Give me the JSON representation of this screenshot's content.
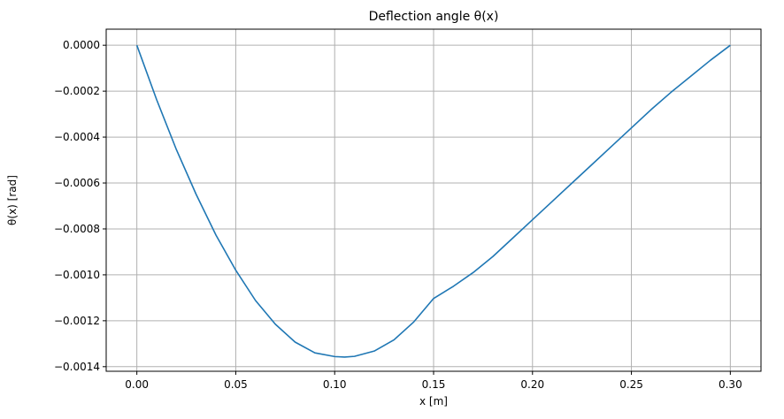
{
  "chart_data": {
    "type": "line",
    "title": "Deflection angle θ(x)",
    "xlabel": "x [m]",
    "ylabel": "θ(x) [rad]",
    "xlim": [
      -0.0155,
      0.3155
    ],
    "ylim": [
      -0.00142,
      7e-05
    ],
    "x_ticks": [
      0.0,
      0.05,
      0.1,
      0.15,
      0.2,
      0.25,
      0.3
    ],
    "x_tick_labels": [
      "0.00",
      "0.05",
      "0.10",
      "0.15",
      "0.20",
      "0.25",
      "0.30"
    ],
    "y_ticks": [
      0.0,
      -0.0002,
      -0.0004,
      -0.0006,
      -0.0008,
      -0.001,
      -0.0012,
      -0.0014
    ],
    "y_tick_labels": [
      "0.0000",
      "−0.0002",
      "−0.0004",
      "−0.0006",
      "−0.0008",
      "−0.0010",
      "−0.0012",
      "−0.0014"
    ],
    "grid": true,
    "color": "#1f77b4",
    "series": [
      {
        "x": [
          0.0,
          0.01,
          0.02,
          0.03,
          0.04,
          0.05,
          0.06,
          0.07,
          0.08,
          0.09,
          0.1,
          0.105,
          0.11,
          0.12,
          0.13,
          0.14,
          0.15,
          0.16,
          0.17,
          0.18,
          0.19,
          0.2,
          0.21,
          0.22,
          0.23,
          0.24,
          0.25,
          0.26,
          0.27,
          0.28,
          0.29,
          0.3
        ],
        "y": [
          0.0,
          -0.000237,
          -0.000455,
          -0.00065,
          -0.000827,
          -0.00098,
          -0.001112,
          -0.001215,
          -0.001293,
          -0.00134,
          -0.001356,
          -0.001358,
          -0.001355,
          -0.001332,
          -0.001283,
          -0.001205,
          -0.001103,
          -0.00105,
          -0.00099,
          -0.00092,
          -0.00084,
          -0.00076,
          -0.00068,
          -0.0006,
          -0.00052,
          -0.00044,
          -0.00036,
          -0.00028,
          -0.000205,
          -0.000135,
          -6.5e-05,
          0.0
        ]
      }
    ]
  }
}
